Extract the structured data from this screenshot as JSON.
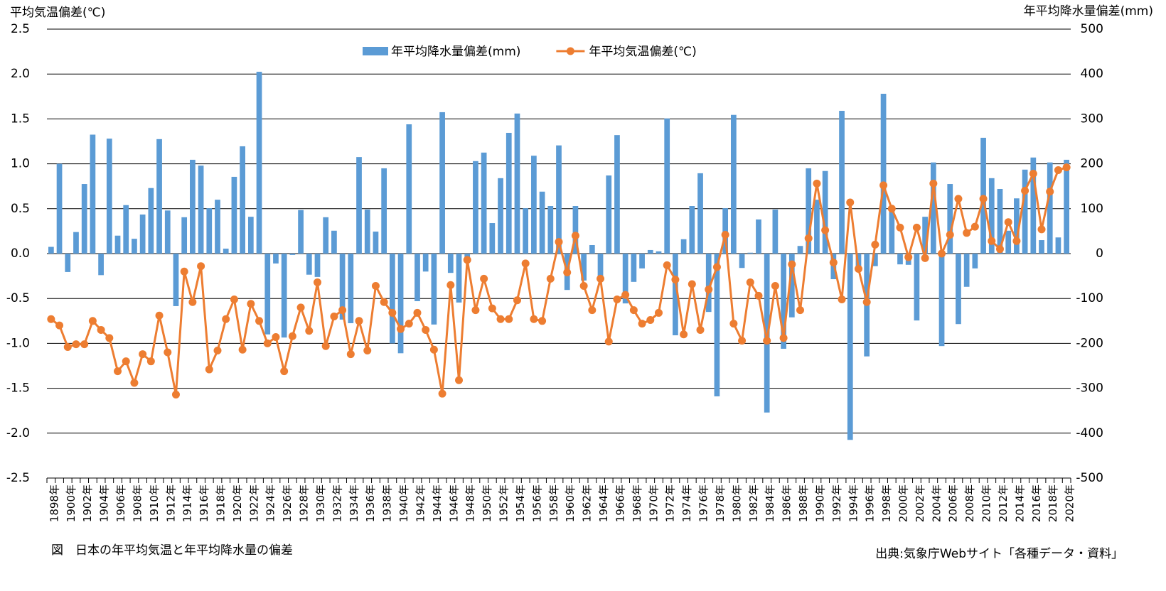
{
  "chart_data": {
    "type": "bar",
    "y_label": "平均気温偏差(℃)",
    "y2_label": "年平均降水量偏差(mm)",
    "caption": "図　日本の年平均気温と年平均降水量の偏差",
    "source": "出典:気象庁Webサイト「各種データ・資料」",
    "categories": [
      "1898年",
      null,
      "1900年",
      null,
      "1902年",
      null,
      "1904年",
      null,
      "1906年",
      null,
      "1908年",
      null,
      "1910年",
      null,
      "1912年",
      null,
      "1914年",
      null,
      "1916年",
      null,
      "1918年",
      null,
      "1920年",
      null,
      "1922年",
      null,
      "1924年",
      null,
      "1926年",
      null,
      "1928年",
      null,
      "1930年",
      null,
      "1932年",
      null,
      "1934年",
      null,
      "1936年",
      null,
      "1938年",
      null,
      "1940年",
      null,
      "1942年",
      null,
      "1944年",
      null,
      "1946年",
      null,
      "1948年",
      null,
      "1950年",
      null,
      "1952年",
      null,
      "1954年",
      null,
      "1956年",
      null,
      "1958年",
      null,
      "1960年",
      null,
      "1962年",
      null,
      "1964年",
      null,
      "1966年",
      null,
      "1968年",
      null,
      "1970年",
      null,
      "1972年",
      null,
      "1974年",
      null,
      "1976年",
      null,
      "1978年",
      null,
      "1980年",
      null,
      "1982年",
      null,
      "1984年",
      null,
      "1986年",
      null,
      "1988年",
      null,
      "1990年",
      null,
      "1992年",
      null,
      "1994年",
      null,
      "1996年",
      null,
      "1998年",
      null,
      "2000年",
      null,
      "2002年",
      null,
      "2004年",
      null,
      "2006年",
      null,
      "2008年",
      null,
      "2010年",
      null,
      "2012年",
      null,
      "2014年",
      null,
      "2016年",
      null,
      "2018年",
      null,
      "2020年"
    ],
    "series": [
      {
        "name": "年平均降水量偏差(mm)",
        "type": "bar",
        "axis": "y2",
        "color": "#5b9bd5",
        "values": [
          15,
          200,
          -41,
          48,
          155,
          265,
          -48,
          256,
          40,
          108,
          33,
          87,
          146,
          255,
          96,
          -117,
          81,
          209,
          196,
          101,
          120,
          11,
          171,
          239,
          82,
          405,
          -180,
          -22,
          -187,
          -3,
          97,
          -47,
          -52,
          81,
          51,
          -147,
          -155,
          215,
          98,
          49,
          190,
          -200,
          -222,
          288,
          -106,
          -40,
          -158,
          315,
          -43,
          -109,
          -20,
          206,
          225,
          68,
          168,
          269,
          312,
          101,
          218,
          138,
          106,
          241,
          -81,
          106,
          -60,
          19,
          -52,
          174,
          264,
          -111,
          -63,
          -33,
          8,
          5,
          301,
          -182,
          32,
          106,
          179,
          -130,
          -318,
          101,
          309,
          -32,
          2,
          76,
          -354,
          98,
          -212,
          -142,
          17,
          190,
          120,
          184,
          -57,
          318,
          -415,
          -36,
          -229,
          -28,
          356,
          106,
          -24,
          -25,
          -149,
          82,
          203,
          -206,
          155,
          -157,
          -74,
          -33,
          258,
          168,
          144,
          51,
          123,
          187,
          214,
          30,
          203,
          36,
          209
        ]
      },
      {
        "name": "年平均気温偏差(℃)",
        "type": "line",
        "axis": "y",
        "color": "#ed7d31",
        "values": [
          -0.73,
          -0.8,
          -1.04,
          -1.01,
          -1.01,
          -0.75,
          -0.85,
          -0.94,
          -1.31,
          -1.2,
          -1.44,
          -1.12,
          -1.2,
          -0.69,
          -1.1,
          -1.57,
          -0.2,
          -0.54,
          -0.14,
          -1.29,
          -1.08,
          -0.73,
          -0.51,
          -1.07,
          -0.56,
          -0.75,
          -1.0,
          -0.93,
          -1.31,
          -0.92,
          -0.6,
          -0.86,
          -0.32,
          -1.03,
          -0.7,
          -0.63,
          -1.12,
          -0.75,
          -1.08,
          -0.36,
          -0.54,
          -0.66,
          -0.84,
          -0.78,
          -0.66,
          -0.85,
          -1.07,
          -1.56,
          -0.35,
          -1.41,
          -0.07,
          -0.63,
          -0.28,
          -0.61,
          -0.73,
          -0.73,
          -0.52,
          -0.11,
          -0.73,
          -0.75,
          -0.28,
          0.13,
          -0.21,
          0.2,
          -0.36,
          -0.63,
          -0.28,
          -0.98,
          -0.51,
          -0.46,
          -0.63,
          -0.78,
          -0.74,
          -0.66,
          -0.13,
          -0.29,
          -0.9,
          -0.34,
          -0.85,
          -0.4,
          -0.15,
          0.21,
          -0.78,
          -0.97,
          -0.32,
          -0.47,
          -0.97,
          -0.36,
          -0.94,
          -0.12,
          -0.63,
          0.17,
          0.78,
          0.26,
          -0.1,
          -0.51,
          0.57,
          -0.17,
          -0.54,
          0.1,
          0.76,
          0.5,
          0.29,
          -0.04,
          0.29,
          -0.05,
          0.78,
          0.0,
          0.21,
          0.61,
          0.23,
          0.3,
          0.61,
          0.14,
          0.05,
          0.35,
          0.14,
          0.7,
          0.89,
          0.27,
          0.69,
          0.93,
          0.96
        ]
      }
    ],
    "ylim": [
      -2.5,
      2.5
    ],
    "yticks": [
      2.5,
      {
        "value": 2,
        "label": "2.0"
      },
      1.5,
      {
        "value": 1,
        "label": "1.0"
      },
      0.5,
      {
        "value": 0,
        "label": "0.0"
      },
      -0.5,
      {
        "value": -1,
        "label": "-1.0"
      },
      -1.5,
      {
        "value": -2,
        "label": "-2.0"
      },
      -2.5
    ],
    "y2lim": [
      -500,
      500
    ],
    "y2ticks": [
      500,
      400,
      300,
      200,
      100,
      0,
      -100,
      -200,
      -300,
      -400,
      -500
    ],
    "grid": true,
    "legend": "top"
  }
}
